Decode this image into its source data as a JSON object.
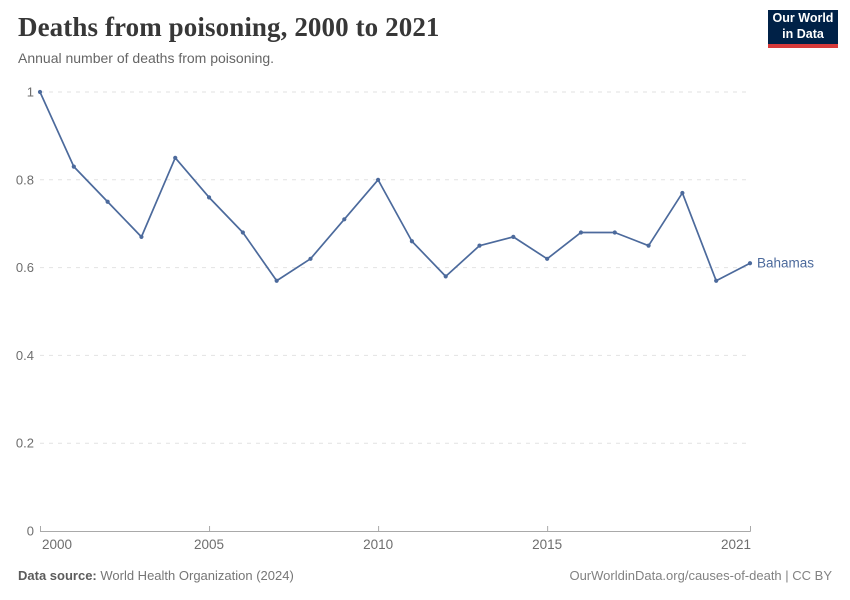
{
  "header": {
    "title": "Deaths from poisoning, 2000 to 2021",
    "subtitle": "Annual number of deaths from poisoning."
  },
  "logo": {
    "line1": "Our World",
    "line2": "in Data"
  },
  "footer": {
    "source_label": "Data source:",
    "source_value": " World Health Organization (2024)",
    "credit": "OurWorldinData.org/causes-of-death | CC BY"
  },
  "colors": {
    "line": "#4C6A9C",
    "logo_bg": "#002147",
    "logo_accent": "#D73A3A",
    "grid": "#E2E2E2",
    "axis": "#A9A9A9",
    "tick_text": "#6E6E6E"
  },
  "chart_data": {
    "type": "line",
    "title": "Deaths from poisoning, 2000 to 2021",
    "subtitle": "Annual number of deaths from poisoning.",
    "x": [
      2000,
      2001,
      2002,
      2003,
      2004,
      2005,
      2006,
      2007,
      2008,
      2009,
      2010,
      2011,
      2012,
      2013,
      2014,
      2015,
      2016,
      2017,
      2018,
      2019,
      2020,
      2021
    ],
    "series": [
      {
        "name": "Bahamas",
        "color": "#4C6A9C",
        "values": [
          1,
          0.83,
          0.75,
          0.67,
          0.85,
          0.76,
          0.68,
          0.57,
          0.62,
          0.71,
          0.8,
          0.66,
          0.58,
          0.65,
          0.67,
          0.62,
          0.68,
          0.68,
          0.65,
          0.77,
          0.57,
          0.61
        ]
      }
    ],
    "xlim": [
      2000,
      2021
    ],
    "ylim": [
      0,
      1
    ],
    "x_ticks": [
      2000,
      2005,
      2010,
      2015,
      2021
    ],
    "y_ticks": [
      0,
      0.2,
      0.4,
      0.6,
      0.8,
      1
    ],
    "y_tick_labels": [
      "0",
      "0.2",
      "0.4",
      "0.6",
      "0.8",
      "1"
    ],
    "grid": "horizontal-dashed",
    "legend": "series-end-label"
  }
}
